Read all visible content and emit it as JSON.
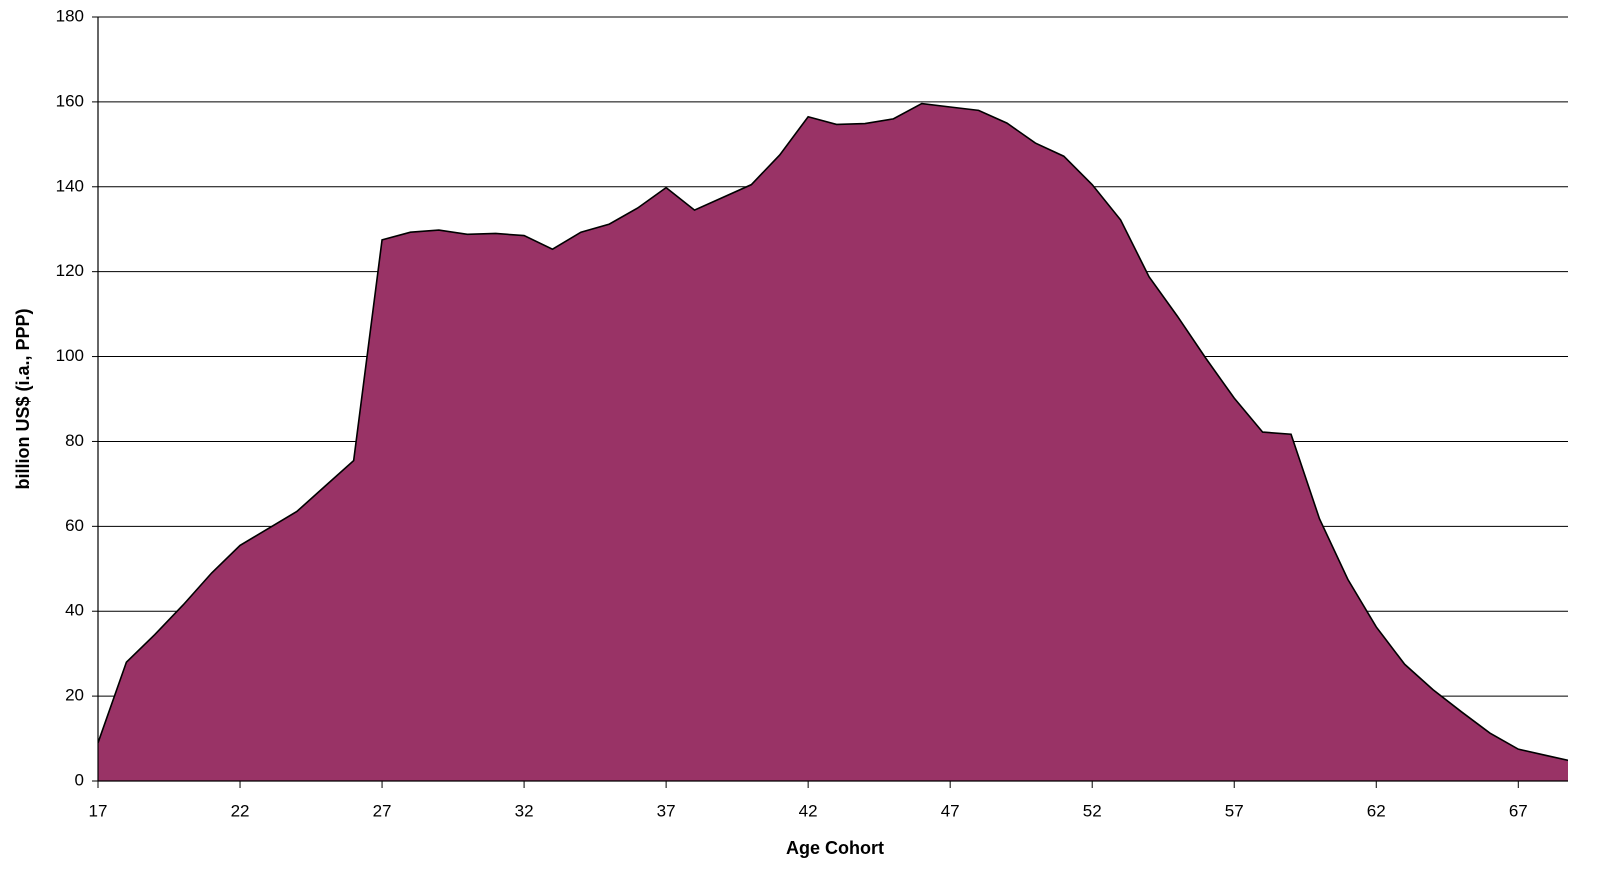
{
  "chart_data": {
    "type": "area",
    "x_label": "Age Cohort",
    "y_label": "billion US$ (i.a., PPP)",
    "x": [
      17,
      18,
      19,
      20,
      21,
      22,
      23,
      24,
      25,
      26,
      27,
      28,
      29,
      30,
      31,
      32,
      33,
      34,
      35,
      36,
      37,
      38,
      39,
      40,
      41,
      42,
      43,
      44,
      45,
      46,
      47,
      48,
      49,
      50,
      51,
      52,
      53,
      54,
      55,
      56,
      57,
      58,
      59,
      60,
      61,
      62,
      63,
      64,
      65,
      66,
      67,
      68,
      69
    ],
    "series": [
      {
        "color": "#993366",
        "values": [
          9,
          28,
          34.5,
          41.5,
          49,
          55.5,
          59.5,
          63.5,
          69.5,
          75.5,
          127.5,
          129.3,
          129.8,
          128.8,
          129,
          128.5,
          125.3,
          129.3,
          131.2,
          135,
          139.8,
          134.5,
          137.5,
          140.5,
          147.5,
          156.5,
          154.7,
          154.9,
          156,
          159.6,
          158.8,
          158,
          155,
          150.3,
          147.2,
          140.5,
          132.2,
          118.8,
          109.5,
          99.6,
          90.2,
          82.2,
          81.7,
          61.8,
          47.5,
          36.3,
          27.5,
          21.5,
          16.3,
          11.3,
          7.5,
          6,
          4.5
        ]
      }
    ],
    "xlim": [
      17,
      68.75
    ],
    "xticks": [
      17,
      22,
      27,
      32,
      37,
      42,
      47,
      52,
      57,
      62,
      67
    ],
    "ylim": [
      0,
      180
    ],
    "yticks": [
      0,
      20,
      40,
      60,
      80,
      100,
      120,
      140,
      160,
      180
    ],
    "grid": true
  }
}
